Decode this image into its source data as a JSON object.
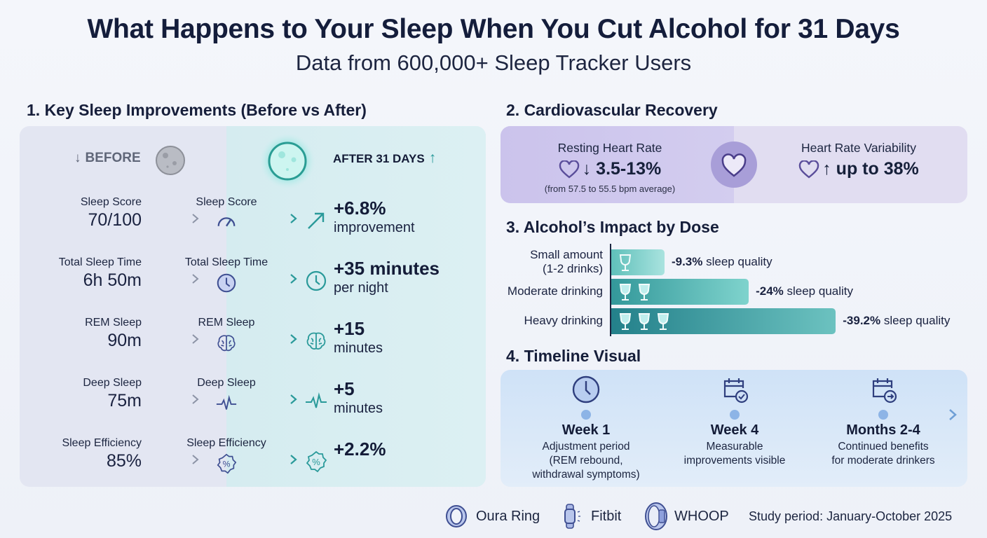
{
  "title": "What Happens to Your Sleep When You Cut Alcohol for 31 Days",
  "subtitle": "Data from 600,000+ Sleep Tracker Users",
  "section1": {
    "heading": "1. Key Sleep Improvements (Before vs After)",
    "before_label": "BEFORE",
    "after_label": "AFTER 31 DAYS",
    "rows": [
      {
        "label": "Sleep Score",
        "before": "70/100",
        "icon": "gauge-icon",
        "after_icon": "trend-up-arrow-icon",
        "after": "+6.8%",
        "after_sub": "improvement"
      },
      {
        "label": "Total Sleep Time",
        "before": "6h 50m",
        "icon": "clock-icon",
        "after_icon": "clock-icon",
        "after": "+35 minutes",
        "after_sub": "per night"
      },
      {
        "label": "REM Sleep",
        "before": "90m",
        "icon": "brain-icon",
        "after_icon": "brain-icon",
        "after": "+15",
        "after_sub": "minutes"
      },
      {
        "label": "Deep Sleep",
        "before": "75m",
        "icon": "pulse-wave-icon",
        "after_icon": "pulse-wave-icon",
        "after": "+5",
        "after_sub": "minutes"
      },
      {
        "label": "Sleep Efficiency",
        "before": "85%",
        "icon": "percent-badge-icon",
        "after_icon": "percent-badge-icon",
        "after": "+2.2%",
        "after_sub": ""
      }
    ]
  },
  "section2": {
    "heading": "2. Cardiovascular Recovery",
    "rhr_label": "Resting Heart Rate",
    "rhr_value": "↓ 3.5-13%",
    "rhr_note": "(from 57.5 to 55.5 bpm average)",
    "hrv_label": "Heart Rate Variability",
    "hrv_value": "↑ up to 38%"
  },
  "section3": {
    "heading": "3. Alcohol’s Impact by Dose",
    "suffix": "sleep quality"
  },
  "chart_data": {
    "type": "bar",
    "orientation": "horizontal",
    "categories": [
      "Small amount (1-2 drinks)",
      "Moderate drinking",
      "Heavy drinking"
    ],
    "category_lines": [
      [
        "Small amount",
        "(1-2 drinks)"
      ],
      [
        "Moderate drinking"
      ],
      [
        "Heavy drinking"
      ]
    ],
    "values": [
      -9.3,
      -24,
      -39.2
    ],
    "value_labels": [
      "-9.3%",
      "-24%",
      "-39.2%"
    ],
    "glasses": [
      1,
      2,
      3
    ],
    "unit": "% sleep quality",
    "colors": [
      "#a6e0dc",
      "#4fb3b0",
      "#2c8f93"
    ]
  },
  "section4": {
    "heading": "4. Timeline Visual",
    "milestones": [
      {
        "title": "Week 1",
        "lines": [
          "Adjustment period",
          "(REM rebound,",
          "withdrawal symptoms)"
        ],
        "icon": "clock-icon"
      },
      {
        "title": "Week 4",
        "lines": [
          "Measurable",
          "improvements visible"
        ],
        "icon": "calendar-check-icon"
      },
      {
        "title": "Months 2-4",
        "lines": [
          "Continued benefits",
          "for moderate drinkers"
        ],
        "icon": "calendar-arrow-icon"
      }
    ]
  },
  "footer": {
    "devices": [
      "Oura Ring",
      "Fitbit",
      "WHOOP"
    ],
    "study_period": "Study period: January-October 2025"
  },
  "colors": {
    "navy": "#141d3b",
    "teal": "#2a9a9a",
    "purple": "#5a4d9a",
    "timeline": "#6f9fd6"
  }
}
